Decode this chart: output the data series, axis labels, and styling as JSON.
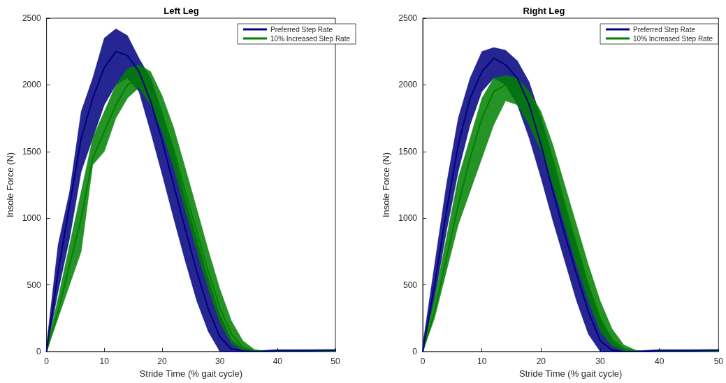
{
  "chart_data": [
    {
      "type": "line",
      "title": "Left Leg",
      "xlabel": "Stride Time (% gait cycle)",
      "ylabel": "Insole Force (N)",
      "x": [
        0,
        2,
        4,
        6,
        8,
        10,
        12,
        14,
        16,
        18,
        20,
        22,
        24,
        26,
        28,
        30,
        32,
        34,
        36,
        38,
        40,
        45,
        50
      ],
      "xlim": [
        0,
        50
      ],
      "xticks": [
        0,
        10,
        20,
        30,
        40,
        50
      ],
      "ylim": [
        0,
        2500
      ],
      "yticks": [
        0,
        500,
        1000,
        1500,
        2000,
        2500
      ],
      "grid": false,
      "legend": "top right",
      "line_style": "solid",
      "marker": "none",
      "series": [
        {
          "name": "Preferred Step Rate",
          "color": "#000080",
          "values": [
            0,
            600,
            1100,
            1600,
            1900,
            2130,
            2250,
            2220,
            2100,
            1880,
            1580,
            1250,
            920,
            600,
            320,
            110,
            20,
            5,
            0,
            0,
            5,
            5,
            10
          ],
          "lower": [
            0,
            450,
            850,
            1350,
            1600,
            1850,
            2000,
            2050,
            1950,
            1650,
            1330,
            1000,
            680,
            380,
            150,
            0,
            0,
            0,
            0,
            0,
            0,
            0,
            0
          ],
          "upper": [
            50,
            800,
            1200,
            1800,
            2050,
            2350,
            2420,
            2370,
            2200,
            2050,
            1800,
            1500,
            1150,
            850,
            550,
            280,
            90,
            20,
            5,
            10,
            15,
            15,
            15
          ]
        },
        {
          "name": "10% Increased Step Rate",
          "color": "#008000",
          "values": [
            0,
            300,
            650,
            1000,
            1450,
            1650,
            1850,
            2000,
            2050,
            1950,
            1780,
            1520,
            1200,
            900,
            600,
            330,
            130,
            30,
            5,
            0,
            0,
            0,
            0
          ],
          "lower": [
            0,
            250,
            500,
            750,
            1400,
            1500,
            1750,
            1900,
            1980,
            1850,
            1650,
            1380,
            1060,
            760,
            470,
            220,
            60,
            5,
            0,
            0,
            0,
            0,
            0
          ],
          "upper": [
            30,
            400,
            800,
            1200,
            1600,
            1800,
            2000,
            2120,
            2150,
            2100,
            1920,
            1680,
            1380,
            1070,
            760,
            470,
            230,
            80,
            15,
            5,
            0,
            0,
            0
          ]
        }
      ]
    },
    {
      "type": "line",
      "title": "Right Leg",
      "xlabel": "Stride Time (% gait cycle)",
      "ylabel": "Insole Force (N)",
      "x": [
        0,
        2,
        4,
        6,
        8,
        10,
        12,
        14,
        16,
        18,
        20,
        22,
        24,
        26,
        28,
        30,
        32,
        34,
        36,
        38,
        40,
        45,
        50
      ],
      "xlim": [
        0,
        50
      ],
      "xticks": [
        0,
        10,
        20,
        30,
        40,
        50
      ],
      "ylim": [
        0,
        2500
      ],
      "yticks": [
        0,
        500,
        1000,
        1500,
        2000,
        2500
      ],
      "grid": false,
      "legend": "top right",
      "line_style": "solid",
      "marker": "none",
      "series": [
        {
          "name": "Preferred Step Rate",
          "color": "#000080",
          "values": [
            0,
            500,
            1050,
            1550,
            1900,
            2100,
            2200,
            2150,
            2050,
            1850,
            1550,
            1200,
            880,
            580,
            300,
            80,
            10,
            0,
            0,
            0,
            5,
            5,
            10
          ],
          "lower": [
            0,
            400,
            900,
            1350,
            1700,
            1950,
            2050,
            2000,
            1850,
            1600,
            1300,
            980,
            680,
            380,
            130,
            0,
            0,
            0,
            0,
            0,
            0,
            0,
            0
          ],
          "upper": [
            50,
            650,
            1250,
            1750,
            2050,
            2250,
            2280,
            2260,
            2180,
            2020,
            1750,
            1450,
            1120,
            800,
            500,
            250,
            80,
            15,
            5,
            10,
            15,
            15,
            15
          ]
        },
        {
          "name": "10% Increased Step Rate",
          "color": "#008000",
          "values": [
            0,
            300,
            700,
            1100,
            1450,
            1750,
            1950,
            2000,
            1950,
            1850,
            1650,
            1400,
            1100,
            800,
            500,
            250,
            90,
            20,
            0,
            0,
            0,
            0,
            0
          ],
          "lower": [
            0,
            250,
            600,
            950,
            1200,
            1450,
            1700,
            1880,
            1850,
            1700,
            1500,
            1250,
            950,
            650,
            380,
            150,
            40,
            5,
            0,
            0,
            0,
            0,
            0
          ],
          "upper": [
            30,
            400,
            850,
            1300,
            1600,
            1900,
            2050,
            2070,
            2050,
            1950,
            1800,
            1550,
            1250,
            950,
            650,
            380,
            170,
            50,
            10,
            0,
            0,
            0,
            0
          ]
        }
      ]
    }
  ]
}
